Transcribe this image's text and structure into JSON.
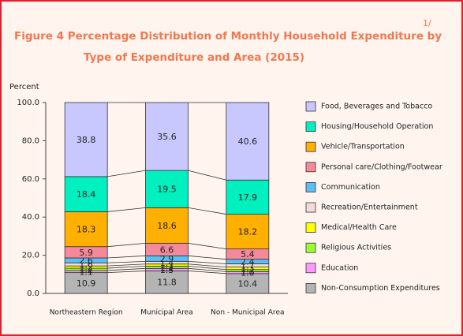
{
  "chart_data": {
    "type": "stacked_bar",
    "title_lines": [
      "Figure   4   Percentage Distribution of Monthly Household Expenditure by",
      "Type of Expenditure and Area (2015)"
    ],
    "title_note": "1/",
    "ylabel": "Percent",
    "categories": [
      "Northeastern Region",
      "Municipal Area",
      "Non - Municipal Area"
    ],
    "ylim": [
      0,
      100
    ],
    "yticks": [
      {
        "value": 0,
        "label": "0.0"
      },
      {
        "value": 20,
        "label": "20.0"
      },
      {
        "value": 40,
        "label": "40.0"
      },
      {
        "value": 60,
        "label": "60.0"
      },
      {
        "value": 80,
        "label": "80.0"
      },
      {
        "value": 100,
        "label": "100.0"
      }
    ],
    "series": [
      {
        "name": "Non-Consumption Expenditures",
        "color": "#b4b4b4",
        "values": [
          10.9,
          11.8,
          10.4
        ],
        "value_labels": [
          "10.9",
          "11.8",
          "10.4"
        ]
      },
      {
        "name": "Education",
        "color": "#ff99ff",
        "values": [
          1.1,
          1.3,
          1.0
        ],
        "value_labels": [
          "1.1",
          "1.3",
          "1.0"
        ]
      },
      {
        "name": "Religious Activities",
        "color": "#99ff33",
        "values": [
          1.2,
          1.2,
          1.1
        ],
        "value_labels": [
          "1.2",
          "1.2",
          "1.1"
        ]
      },
      {
        "name": "Medical/Health Care",
        "color": "#ffff00",
        "values": [
          1.2,
          1.1,
          1.3
        ],
        "value_labels": [
          "1.2",
          "1.1",
          "1.3"
        ]
      },
      {
        "name": "Recreation/Entertainment",
        "color": "#f2dcdb",
        "values": [
          1.6,
          1.4,
          1.7
        ],
        "value_labels": [
          "1.6",
          "1.4",
          "1.7"
        ]
      },
      {
        "name": "Communication",
        "color": "#5bbff5",
        "values": [
          2.6,
          2.9,
          2.4
        ],
        "value_labels": [
          "2.6",
          "2.9",
          "2.4"
        ]
      },
      {
        "name": "Personal care/Clothing/Footwear",
        "color": "#f4899c",
        "values": [
          5.9,
          6.6,
          5.4
        ],
        "value_labels": [
          "5.9",
          "6.6",
          "5.4"
        ]
      },
      {
        "name": "Vehicle/Transportation",
        "color": "#ffb000",
        "values": [
          18.3,
          18.6,
          18.2
        ],
        "value_labels": [
          "18.3",
          "18.6",
          "18.2"
        ]
      },
      {
        "name": "Housing/Household Operation",
        "color": "#00f0c0",
        "values": [
          18.4,
          19.5,
          17.9
        ],
        "value_labels": [
          "18.4",
          "19.5",
          "17.9"
        ]
      },
      {
        "name": "Food, Beverages and Tobacco",
        "color": "#c8c8ff",
        "values": [
          38.8,
          35.6,
          40.6
        ],
        "value_labels": [
          "38.8",
          "35.6",
          "40.6"
        ]
      }
    ]
  }
}
